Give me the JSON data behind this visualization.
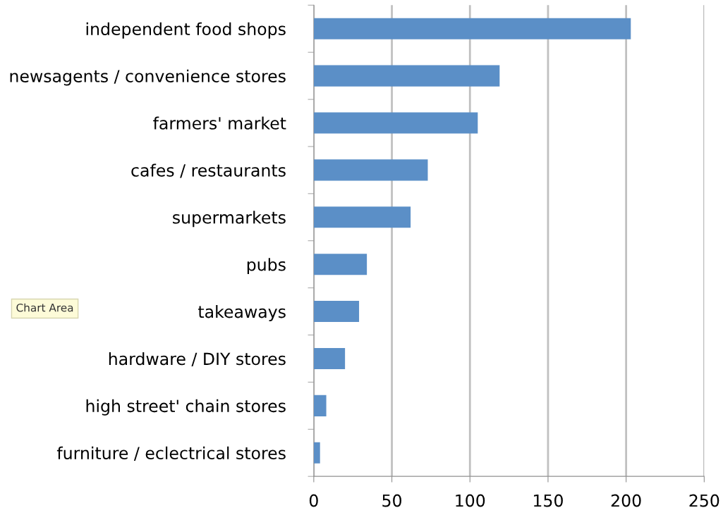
{
  "chart_data": {
    "type": "bar",
    "orientation": "horizontal",
    "categories": [
      "independent food shops",
      "newsagents / convenience stores",
      "farmers' market",
      "cafes / restaurants",
      "supermarkets",
      "pubs",
      "takeaways",
      "hardware / DIY stores",
      "high street' chain stores",
      "furniture / eclectrical stores"
    ],
    "values": [
      203,
      119,
      105,
      73,
      62,
      34,
      29,
      20,
      8,
      4
    ],
    "color": "#5b8fc7",
    "xlim": [
      0,
      250
    ],
    "xticks": [
      0,
      50,
      100,
      150,
      200,
      250
    ],
    "grid": "x",
    "annotations": [
      "Chart Area"
    ]
  }
}
